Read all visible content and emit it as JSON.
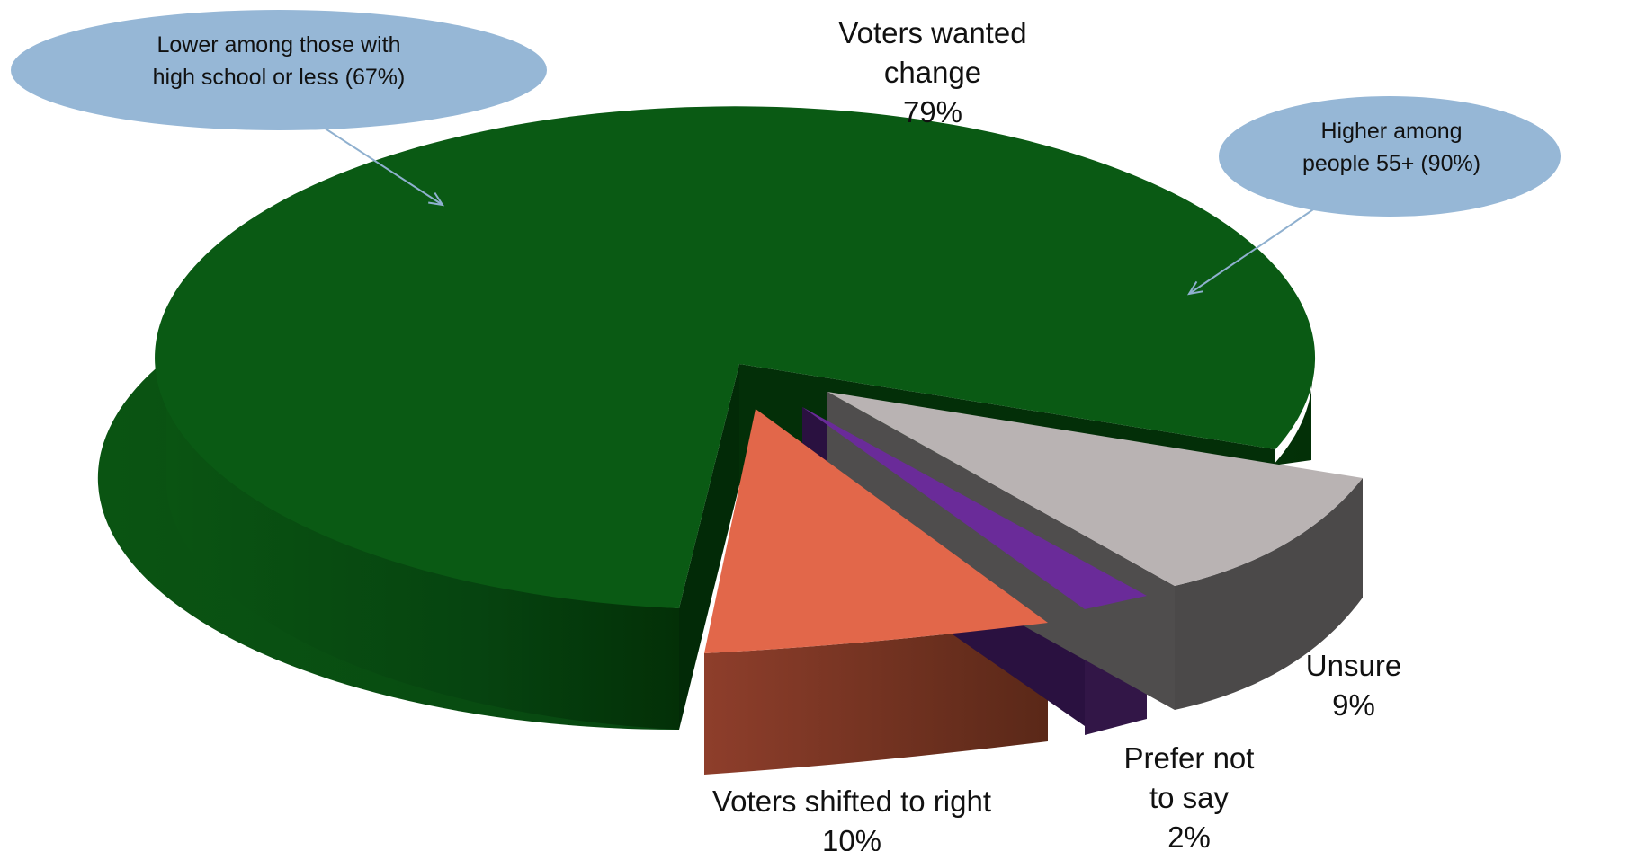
{
  "chart_data": {
    "type": "pie",
    "style": "3d-exploded",
    "slices": [
      {
        "name": "Voters wanted change",
        "label_lines": [
          "Voters wanted",
          "change"
        ],
        "value": 79,
        "value_label": "79%",
        "color": "#0a5a14"
      },
      {
        "name": "Voters shifted to right",
        "label_lines": [
          "Voters shifted to right"
        ],
        "value": 10,
        "value_label": "10%",
        "color": "#e2674a"
      },
      {
        "name": "Prefer not to say",
        "label_lines": [
          "Prefer not",
          "to say"
        ],
        "value": 2,
        "value_label": "2%",
        "color": "#6a2b99"
      },
      {
        "name": "Unsure",
        "label_lines": [
          "Unsure"
        ],
        "value": 9,
        "value_label": "9%",
        "color": "#b9b3b3"
      }
    ],
    "annotations": [
      {
        "id": "left-callout",
        "lines": [
          "Lower among those with",
          "high school or less (67%)"
        ],
        "color": "#96b7d6"
      },
      {
        "id": "right-callout",
        "lines": [
          "Higher among",
          "people 55+ (90%)"
        ],
        "color": "#96b7d6"
      }
    ],
    "legend": "none"
  }
}
